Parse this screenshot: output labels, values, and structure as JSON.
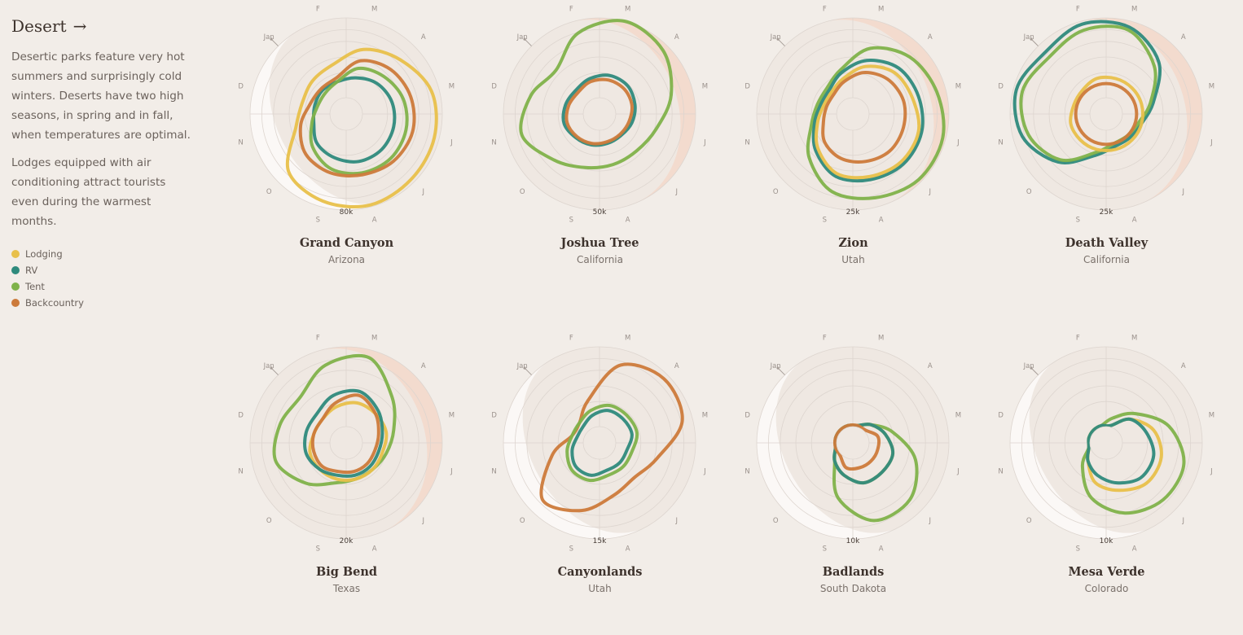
{
  "section": {
    "title": "Desert",
    "arrow": "→",
    "paragraphs": [
      "Desertic parks feature very hot summers and surprisingly cold winters. Deserts have two high seasons, in spring and in fall, when temperatures are optimal.",
      "Lodges equipped with air conditioning attract tourists even during the warmest months."
    ]
  },
  "colors": {
    "Lodging": "#e8c04a",
    "RV": "#2e8a7c",
    "Tent": "#7fb24a",
    "Backcountry": "#cc7a3a",
    "shade_light": "#fbf9f7",
    "shade_warm": "#f3d9cc",
    "grid": "#ddd5cf"
  },
  "legend": [
    {
      "label": "Lodging",
      "color": "#e8c04a"
    },
    {
      "label": "RV",
      "color": "#2e8a7c"
    },
    {
      "label": "Tent",
      "color": "#7fb24a"
    },
    {
      "label": "Backcountry",
      "color": "#cc7a3a"
    }
  ],
  "month_labels": [
    "Jan",
    "F",
    "M",
    "A",
    "M",
    "J",
    "J",
    "A",
    "S",
    "O",
    "N",
    "D"
  ],
  "chart_data": [
    {
      "type": "radial-line",
      "title": "Grand Canyon",
      "subtitle": "Arizona",
      "scale_label": "80k",
      "rmax": 80,
      "series": [
        {
          "name": "Lodging",
          "values": [
            30,
            34,
            50,
            60,
            72,
            75,
            76,
            78,
            74,
            65,
            35,
            28
          ]
        },
        {
          "name": "RV",
          "values": [
            16,
            16,
            20,
            26,
            30,
            32,
            33,
            32,
            28,
            24,
            16,
            15
          ]
        },
        {
          "name": "Tent",
          "values": [
            12,
            16,
            30,
            36,
            42,
            45,
            46,
            44,
            40,
            30,
            18,
            12
          ]
        },
        {
          "name": "Backcountry",
          "values": [
            18,
            20,
            38,
            46,
            50,
            52,
            50,
            46,
            44,
            40,
            30,
            20
          ]
        }
      ],
      "shade": "light"
    },
    {
      "type": "radial-line",
      "title": "Joshua Tree",
      "subtitle": "California",
      "scale_label": "50k",
      "rmax": 50,
      "series": [
        {
          "name": "Tent",
          "values": [
            28,
            42,
            50,
            46,
            36,
            26,
            22,
            22,
            24,
            30,
            40,
            34
          ]
        },
        {
          "name": "RV",
          "values": [
            10,
            12,
            14,
            14,
            12,
            10,
            8,
            8,
            9,
            10,
            12,
            11
          ]
        },
        {
          "name": "Backcountry",
          "values": [
            8,
            10,
            11,
            11,
            10,
            8,
            7,
            7,
            8,
            9,
            10,
            9
          ]
        }
      ],
      "shade": "warm"
    },
    {
      "type": "radial-line",
      "title": "Zion",
      "subtitle": "Utah",
      "scale_label": "25k",
      "rmax": 25,
      "series": [
        {
          "name": "Tent",
          "values": [
            6,
            9,
            16,
            20,
            22,
            24,
            24,
            22,
            20,
            14,
            8,
            6
          ]
        },
        {
          "name": "RV",
          "values": [
            5,
            8,
            12,
            15,
            16,
            17,
            17,
            16,
            15,
            11,
            7,
            5
          ]
        },
        {
          "name": "Lodging",
          "values": [
            4,
            6,
            10,
            13,
            14,
            16,
            16,
            15,
            14,
            10,
            6,
            4
          ]
        },
        {
          "name": "Backcountry",
          "values": [
            3,
            5,
            8,
            10,
            11,
            11,
            11,
            10,
            9,
            7,
            4,
            3
          ]
        }
      ],
      "shade": "warm"
    },
    {
      "type": "radial-line",
      "title": "Death Valley",
      "subtitle": "California",
      "scale_label": "25k",
      "rmax": 25,
      "series": [
        {
          "name": "RV",
          "values": [
            22,
            24,
            23,
            18,
            10,
            6,
            5,
            5,
            8,
            16,
            22,
            24
          ]
        },
        {
          "name": "Tent",
          "values": [
            20,
            22,
            22,
            16,
            9,
            5,
            4,
            4,
            7,
            15,
            20,
            22
          ]
        },
        {
          "name": "Lodging",
          "values": [
            5,
            6,
            6,
            6,
            6,
            6,
            6,
            6,
            6,
            6,
            6,
            5
          ]
        },
        {
          "name": "Backcountry",
          "values": [
            4,
            4,
            4,
            4,
            4,
            4,
            4,
            4,
            4,
            4,
            4,
            4
          ]
        }
      ],
      "shade": "warm"
    },
    {
      "type": "radial-line",
      "title": "Big Bend",
      "subtitle": "Texas",
      "scale_label": "20k",
      "rmax": 20,
      "series": [
        {
          "name": "Tent",
          "values": [
            12,
            16,
            18,
            12,
            8,
            6,
            5,
            5,
            6,
            10,
            14,
            13
          ]
        },
        {
          "name": "Lodging",
          "values": [
            4,
            5,
            6,
            6,
            6,
            5,
            5,
            5,
            5,
            5,
            5,
            4
          ]
        },
        {
          "name": "RV",
          "values": [
            6,
            8,
            9,
            7,
            5,
            4,
            4,
            4,
            4,
            5,
            6,
            6
          ]
        },
        {
          "name": "Backcountry",
          "values": [
            4,
            6,
            8,
            6,
            4,
            3,
            3,
            3,
            3,
            4,
            4,
            4
          ]
        }
      ],
      "shade": "warm"
    },
    {
      "type": "radial-line",
      "title": "Canyonlands",
      "subtitle": "Utah",
      "scale_label": "15k",
      "rmax": 15,
      "series": [
        {
          "name": "Backcountry",
          "values": [
            2,
            5,
            12,
            14,
            13,
            8,
            6,
            7,
            10,
            12,
            6,
            2
          ]
        },
        {
          "name": "Tent",
          "values": [
            2,
            3,
            4,
            4,
            4,
            3,
            3,
            3,
            4,
            4,
            3,
            2
          ]
        },
        {
          "name": "RV",
          "values": [
            1,
            2,
            3,
            3,
            3,
            2,
            2,
            2,
            3,
            3,
            2,
            1
          ]
        }
      ],
      "shade": "light"
    },
    {
      "type": "radial-line",
      "title": "Badlands",
      "subtitle": "South Dakota",
      "scale_label": "10k",
      "rmax": 10,
      "series": [
        {
          "name": "Tent",
          "values": [
            0,
            0,
            0,
            1,
            3,
            6,
            8,
            8,
            5,
            1,
            0,
            0
          ]
        },
        {
          "name": "Lodging",
          "values": [
            0,
            0,
            0,
            1,
            2,
            3,
            3,
            3,
            2,
            1,
            0,
            0
          ]
        },
        {
          "name": "RV",
          "values": [
            0,
            0,
            0,
            1,
            2,
            3,
            3,
            3,
            2,
            1,
            0,
            0
          ]
        },
        {
          "name": "Backcountry",
          "values": [
            0,
            0,
            0,
            0,
            1,
            1,
            1,
            1,
            1,
            0,
            0,
            0
          ]
        }
      ],
      "shade": "light"
    },
    {
      "type": "radial-line",
      "title": "Mesa Verde",
      "subtitle": "Colorado",
      "scale_label": "10k",
      "rmax": 10,
      "series": [
        {
          "name": "Tent",
          "values": [
            0,
            0,
            1,
            3,
            6,
            8,
            8,
            7,
            5,
            2,
            0,
            0
          ]
        },
        {
          "name": "Lodging",
          "values": [
            0,
            0,
            0,
            2,
            4,
            5,
            5,
            4,
            3,
            1,
            0,
            0
          ]
        },
        {
          "name": "RV",
          "values": [
            0,
            0,
            0,
            2,
            3,
            4,
            4,
            3,
            2,
            1,
            0,
            0
          ]
        }
      ],
      "shade": "light"
    }
  ]
}
